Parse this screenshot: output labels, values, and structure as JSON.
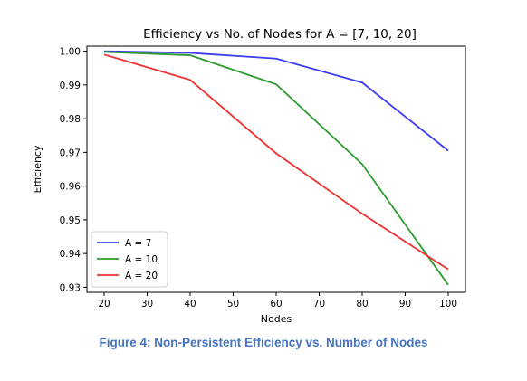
{
  "caption": "Figure 4: Non-Persistent Efficiency vs. Number of Nodes",
  "chart_data": {
    "type": "line",
    "title": "Efficiency vs No. of Nodes for A = [7, 10, 20]",
    "xlabel": "Nodes",
    "ylabel": "Efficiency",
    "x": [
      20,
      40,
      60,
      80,
      100
    ],
    "xlim": [
      16,
      104
    ],
    "ylim": [
      0.9285,
      1.0015
    ],
    "xticks": [
      20,
      30,
      40,
      50,
      60,
      70,
      80,
      90,
      100
    ],
    "yticks": [
      0.93,
      0.94,
      0.95,
      0.96,
      0.97,
      0.98,
      0.99,
      1.0
    ],
    "ytick_labels": [
      "0.93",
      "0.94",
      "0.95",
      "0.96",
      "0.97",
      "0.98",
      "0.99",
      "1.00"
    ],
    "grid": false,
    "legend_position": "lower-left",
    "series": [
      {
        "name": "A = 7",
        "color": "#3a3df0",
        "values": [
          1.0,
          0.9995,
          0.9978,
          0.9907,
          0.9705
        ]
      },
      {
        "name": "A = 10",
        "color": "#2b9a2b",
        "values": [
          0.9998,
          0.9988,
          0.9902,
          0.9665,
          0.9307
        ]
      },
      {
        "name": "A = 20",
        "color": "#ef3030",
        "values": [
          0.999,
          0.9915,
          0.9697,
          0.9518,
          0.9353
        ]
      }
    ]
  }
}
